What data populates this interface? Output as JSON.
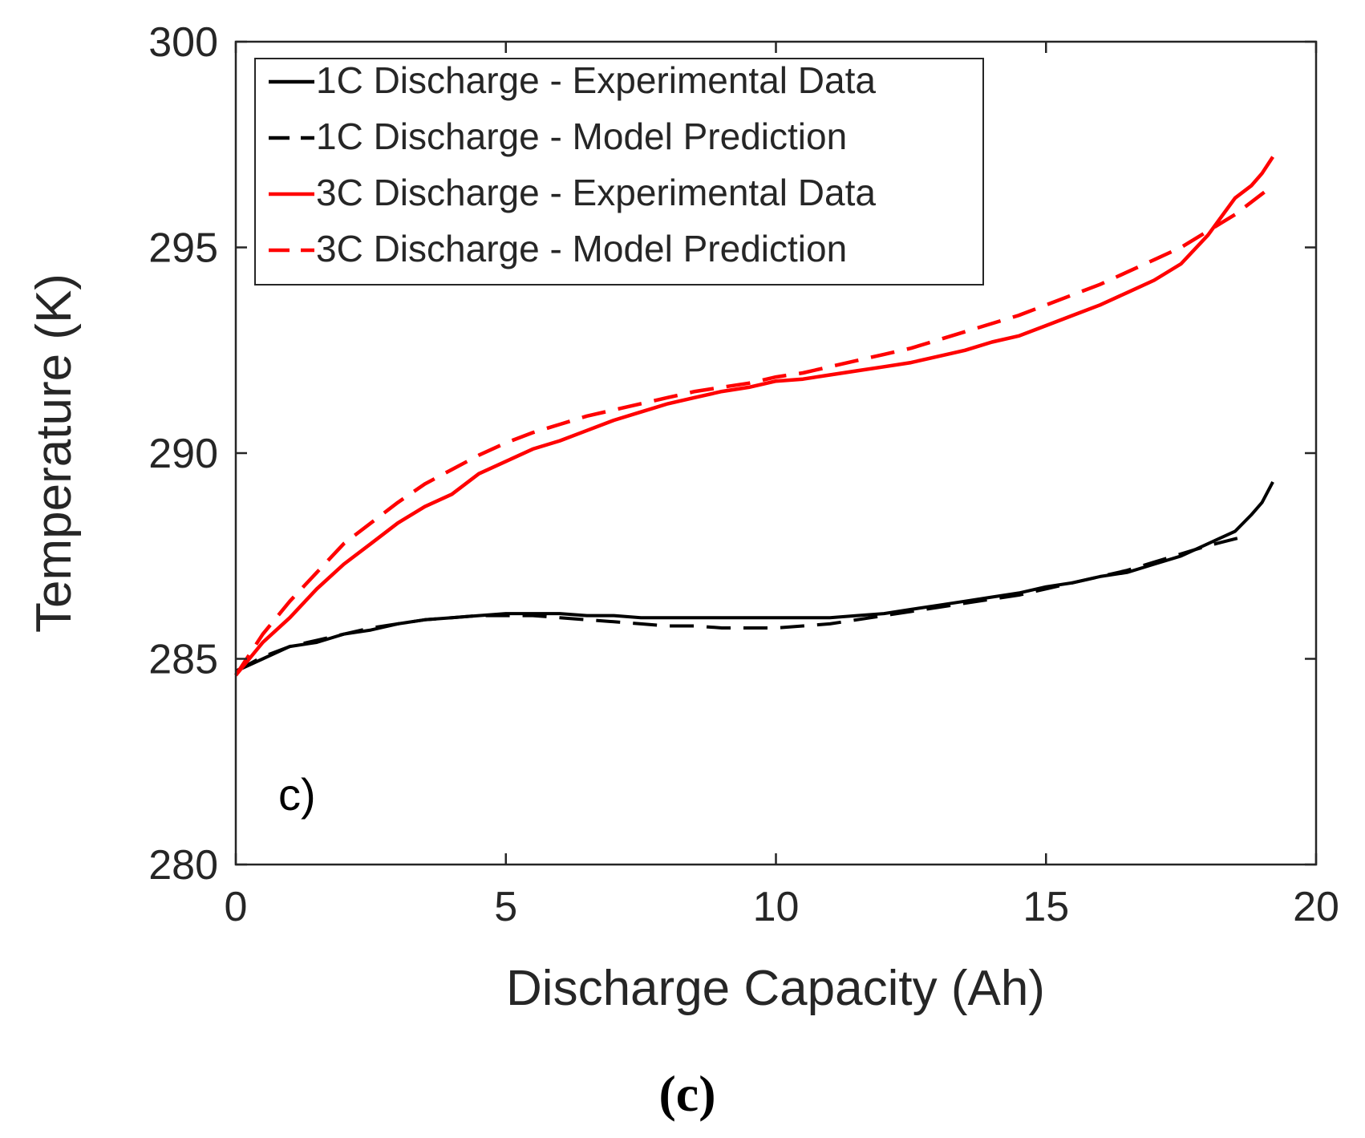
{
  "chart_data": {
    "type": "line",
    "title": "",
    "xlabel": "Discharge Capacity (Ah)",
    "ylabel": "Temperature (K)",
    "xlim": [
      0,
      20
    ],
    "ylim": [
      280,
      300
    ],
    "xticks": [
      0,
      5,
      10,
      15,
      20
    ],
    "yticks": [
      280,
      285,
      290,
      295,
      300
    ],
    "xtick_labels": [
      "0",
      "5",
      "10",
      "15",
      "20"
    ],
    "ytick_labels": [
      "280",
      "285",
      "290",
      "295",
      "300"
    ],
    "grid": false,
    "legend_position": "top-left",
    "annotation": "c)",
    "caption": "(c)",
    "series": [
      {
        "name": "1C Discharge - Experimental Data",
        "color": "#000000",
        "dash": "solid",
        "x": [
          0,
          0.5,
          1,
          1.5,
          2,
          2.5,
          3,
          3.5,
          4,
          4.5,
          5,
          5.5,
          6,
          6.5,
          7,
          7.5,
          8,
          8.5,
          9,
          9.5,
          10,
          10.5,
          11,
          11.5,
          12,
          12.5,
          13,
          13.5,
          14,
          14.5,
          15,
          15.5,
          16,
          16.5,
          17,
          17.5,
          18,
          18.5,
          18.8,
          19.0,
          19.2
        ],
        "y": [
          284.7,
          285.0,
          285.3,
          285.4,
          285.6,
          285.7,
          285.85,
          285.95,
          286.0,
          286.05,
          286.1,
          286.1,
          286.1,
          286.05,
          286.05,
          286.0,
          286.0,
          286.0,
          286.0,
          286.0,
          286.0,
          286.0,
          286.0,
          286.05,
          286.1,
          286.2,
          286.3,
          286.4,
          286.5,
          286.6,
          286.75,
          286.85,
          287.0,
          287.1,
          287.3,
          287.5,
          287.8,
          288.1,
          288.5,
          288.8,
          289.3
        ]
      },
      {
        "name": "1C Discharge - Model Prediction",
        "color": "#000000",
        "dash": "dashed",
        "x": [
          0,
          0.5,
          1,
          1.5,
          2,
          2.5,
          3,
          3.5,
          4,
          4.5,
          5,
          5.5,
          6,
          6.5,
          7,
          7.5,
          8,
          8.5,
          9,
          9.5,
          10,
          10.5,
          11,
          11.5,
          12,
          12.5,
          13,
          13.5,
          14,
          14.5,
          15,
          15.5,
          16,
          16.5,
          17,
          17.5,
          18,
          18.6
        ],
        "y": [
          284.7,
          285.05,
          285.3,
          285.45,
          285.6,
          285.75,
          285.85,
          285.95,
          286.0,
          286.05,
          286.05,
          286.05,
          286.0,
          285.95,
          285.9,
          285.85,
          285.8,
          285.8,
          285.75,
          285.75,
          285.75,
          285.8,
          285.85,
          285.95,
          286.05,
          286.15,
          286.25,
          286.35,
          286.45,
          286.55,
          286.7,
          286.85,
          287.0,
          287.15,
          287.35,
          287.55,
          287.75,
          287.95
        ]
      },
      {
        "name": "3C Discharge - Experimental Data",
        "color": "#ff0000",
        "dash": "solid",
        "x": [
          0,
          0.5,
          1,
          1.5,
          2,
          2.5,
          3,
          3.5,
          4,
          4.5,
          5,
          5.5,
          6,
          6.5,
          7,
          7.5,
          8,
          8.5,
          9,
          9.5,
          10,
          10.5,
          11,
          11.5,
          12,
          12.5,
          13,
          13.5,
          14,
          14.5,
          15,
          15.5,
          16,
          16.5,
          17,
          17.5,
          18,
          18.5,
          18.8,
          19.0,
          19.2
        ],
        "y": [
          284.6,
          285.4,
          286.0,
          286.7,
          287.3,
          287.8,
          288.3,
          288.7,
          289.0,
          289.5,
          289.8,
          290.1,
          290.3,
          290.55,
          290.8,
          291.0,
          291.2,
          291.35,
          291.5,
          291.6,
          291.75,
          291.8,
          291.9,
          292.0,
          292.1,
          292.2,
          292.35,
          292.5,
          292.7,
          292.85,
          293.1,
          293.35,
          293.6,
          293.9,
          294.2,
          294.6,
          295.3,
          296.2,
          296.5,
          296.8,
          297.2
        ]
      },
      {
        "name": "3C Discharge - Model Prediction",
        "color": "#ff0000",
        "dash": "dashed",
        "x": [
          0,
          0.5,
          1,
          1.5,
          2,
          2.5,
          3,
          3.5,
          4,
          4.5,
          5,
          5.5,
          6,
          6.5,
          7,
          7.5,
          8,
          8.5,
          9,
          9.5,
          10,
          10.5,
          11,
          11.5,
          12,
          12.5,
          13,
          13.5,
          14,
          14.5,
          15,
          15.5,
          16,
          16.5,
          17,
          17.5,
          18,
          18.5,
          19.0,
          19.2
        ],
        "y": [
          284.6,
          285.6,
          286.4,
          287.1,
          287.8,
          288.3,
          288.8,
          289.25,
          289.6,
          289.95,
          290.25,
          290.5,
          290.7,
          290.9,
          291.05,
          291.2,
          291.35,
          291.5,
          291.6,
          291.7,
          291.85,
          291.95,
          292.1,
          292.25,
          292.4,
          292.55,
          292.75,
          292.95,
          293.15,
          293.35,
          293.6,
          293.85,
          294.1,
          294.4,
          294.7,
          295.0,
          295.4,
          295.8,
          296.3,
          296.5
        ]
      }
    ]
  }
}
